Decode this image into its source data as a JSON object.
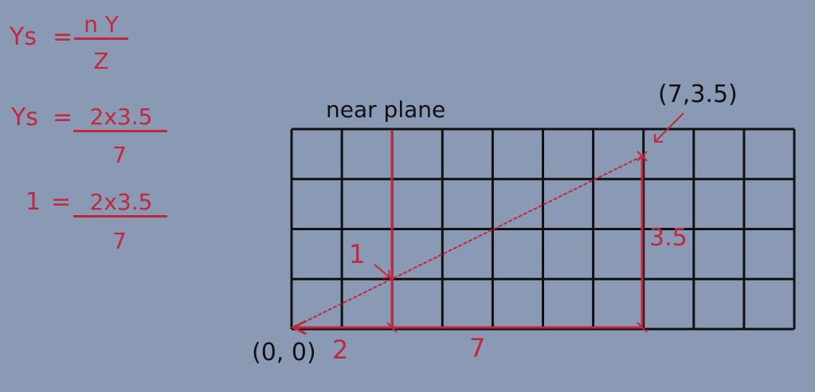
{
  "colors": {
    "background": "#8a9ab4",
    "grid": "#111111",
    "construction": "#c2283c"
  },
  "formulas": [
    {
      "lhs": "Ys",
      "numerator": "n Y",
      "denominator": "Z"
    },
    {
      "lhs": "Ys",
      "numerator": "2x3.5",
      "denominator": "7"
    },
    {
      "lhs": "1",
      "numerator": "2x3.5",
      "denominator": "7"
    }
  ],
  "diagram": {
    "grid": {
      "columns": 10,
      "rows": 4
    },
    "near_plane_label": "near plane",
    "origin_label": "(0, 0)",
    "point_label": "(7,3.5)",
    "projected_value_label": "1",
    "height_label": "3.5",
    "near_distance_label": "2",
    "far_distance_label": "7"
  }
}
